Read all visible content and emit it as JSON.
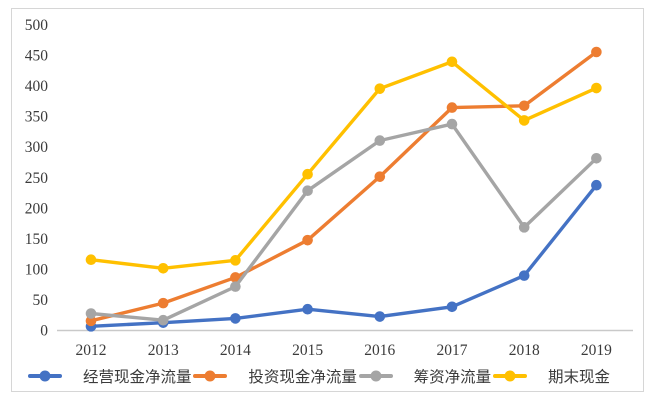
{
  "chart_data": {
    "type": "line",
    "categories": [
      "2012",
      "2013",
      "2014",
      "2015",
      "2016",
      "2017",
      "2018",
      "2019"
    ],
    "series": [
      {
        "name": "经营现金净流量",
        "color": "#4472C4",
        "values": [
          6,
          12,
          19,
          34,
          22,
          38,
          89,
          237
        ]
      },
      {
        "name": "投资现金净流量",
        "color": "#ED7D31",
        "values": [
          15,
          44,
          86,
          147,
          251,
          364,
          367,
          455
        ]
      },
      {
        "name": "筹资净流量",
        "color": "#A5A5A5",
        "values": [
          27,
          16,
          71,
          228,
          310,
          337,
          168,
          281
        ]
      },
      {
        "name": "期末现金",
        "color": "#FFC000",
        "values": [
          115,
          101,
          114,
          255,
          395,
          439,
          343,
          396
        ]
      }
    ],
    "ylim": [
      0,
      500
    ],
    "ytick_step": 50,
    "yticks": [
      "0",
      "50",
      "100",
      "150",
      "200",
      "250",
      "300",
      "350",
      "400",
      "450",
      "500"
    ],
    "grid": false,
    "legend_position": "bottom",
    "axis_color": "#c9c9c9",
    "tick_label_color": "#3b3b3b",
    "frame_color": "#d6d6d6"
  }
}
